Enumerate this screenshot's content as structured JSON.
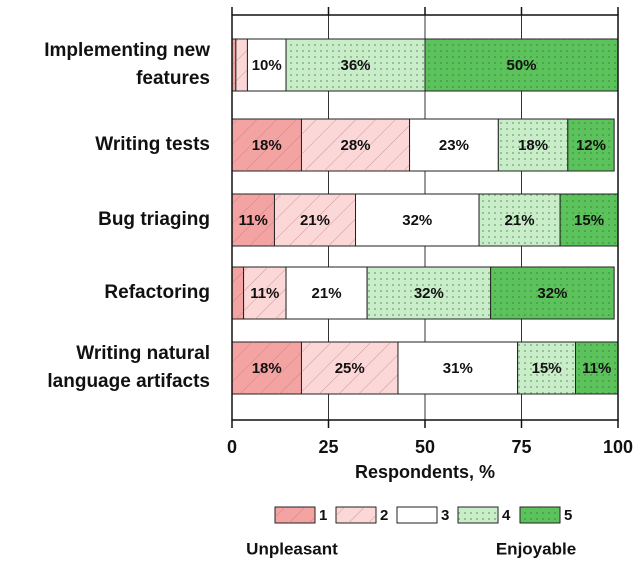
{
  "chart_data": {
    "type": "stacked-barh",
    "categories": [
      "Implementing new\nfeatures",
      "Writing tests",
      "Bug triaging",
      "Refactoring",
      "Writing natural\nlanguage artifacts"
    ],
    "series": [
      {
        "name": "1",
        "color": "#f4a3a3",
        "pattern": "hatch",
        "values": [
          1,
          18,
          11,
          3,
          18
        ],
        "value_labels": [
          null,
          "18%",
          "11%",
          null,
          "18%"
        ]
      },
      {
        "name": "2",
        "color": "#fcd7d7",
        "pattern": "hatch",
        "values": [
          3,
          28,
          21,
          11,
          25
        ],
        "value_labels": [
          null,
          "28%",
          "21%",
          "11%",
          "25%"
        ]
      },
      {
        "name": "3",
        "color": "#ffffff",
        "pattern": "none",
        "values": [
          10,
          23,
          32,
          21,
          31
        ],
        "value_labels": [
          "10%",
          "23%",
          "32%",
          "21%",
          "31%"
        ]
      },
      {
        "name": "4",
        "color": "#c9edc9",
        "pattern": "dots",
        "values": [
          36,
          18,
          21,
          32,
          15
        ],
        "value_labels": [
          "36%",
          "18%",
          "21%",
          "32%",
          "15%"
        ]
      },
      {
        "name": "5",
        "color": "#5cc35c",
        "pattern": "dots",
        "values": [
          50,
          12,
          15,
          32,
          11
        ],
        "value_labels": [
          "50%",
          "12%",
          "15%",
          "32%",
          "11%"
        ]
      }
    ],
    "xlabel": "Respondents, %",
    "xlim": [
      0,
      100
    ],
    "xticks": [
      0,
      25,
      50,
      75,
      100
    ],
    "grid": true,
    "annotations": [
      "Unpleasant",
      "Enjoyable"
    ]
  }
}
